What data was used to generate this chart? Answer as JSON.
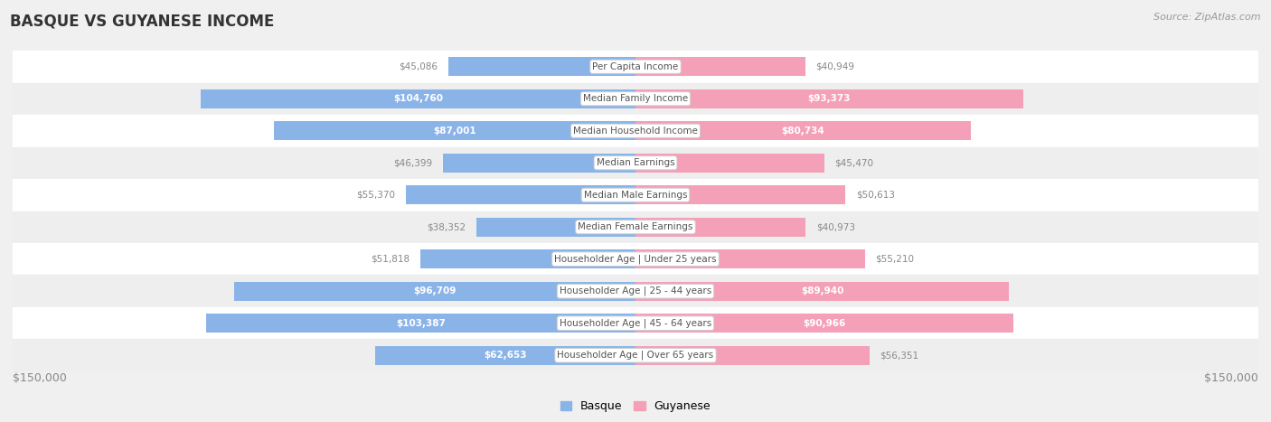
{
  "title": "BASQUE VS GUYANESE INCOME",
  "source": "Source: ZipAtlas.com",
  "categories": [
    "Per Capita Income",
    "Median Family Income",
    "Median Household Income",
    "Median Earnings",
    "Median Male Earnings",
    "Median Female Earnings",
    "Householder Age | Under 25 years",
    "Householder Age | 25 - 44 years",
    "Householder Age | 45 - 64 years",
    "Householder Age | Over 65 years"
  ],
  "basque_values": [
    45086,
    104760,
    87001,
    46399,
    55370,
    38352,
    51818,
    96709,
    103387,
    62653
  ],
  "guyanese_values": [
    40949,
    93373,
    80734,
    45470,
    50613,
    40973,
    55210,
    89940,
    90966,
    56351
  ],
  "basque_color": "#8ab4e8",
  "guyanese_color": "#f4a0b8",
  "basque_label": "Basque",
  "guyanese_label": "Guyanese",
  "axis_max": 150000,
  "bar_height": 0.6,
  "row_bg_even": "#ffffff",
  "row_bg_odd": "#eeeeee",
  "label_color_inside": "#ffffff",
  "label_color_outside": "#888888",
  "center_label_bg": "#ffffff",
  "center_label_color": "#555555",
  "title_color": "#333333",
  "source_color": "#999999",
  "axis_label_color": "#888888",
  "xlabel_left": "$150,000",
  "xlabel_right": "$150,000",
  "inside_threshold": 60000,
  "fig_bg": "#f0f0f0"
}
